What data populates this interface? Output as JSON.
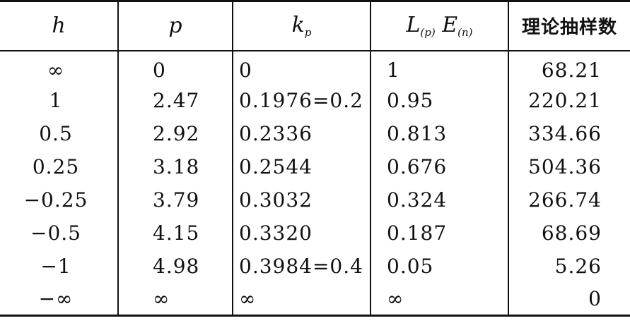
{
  "table": {
    "headers": {
      "h": "h",
      "p": "p",
      "kp": "k",
      "kp_sub": "p",
      "lp_main": "L",
      "lp_sub1": "(p)",
      "lp_main2": "E",
      "lp_sub2": "(n)",
      "sample": "理论抽样数"
    },
    "rows": [
      {
        "h": "∞",
        "p": "0",
        "kp": "0",
        "lp": "1",
        "n": "68.21"
      },
      {
        "h": "1",
        "p": "2.47",
        "kp": "0.1976=0.2",
        "lp": "0.95",
        "n": "220.21"
      },
      {
        "h": "0.5",
        "p": "2.92",
        "kp": "0.2336",
        "lp": "0.813",
        "n": "334.66"
      },
      {
        "h": "0.25",
        "p": "3.18",
        "kp": "0.2544",
        "lp": "0.676",
        "n": "504.36"
      },
      {
        "h": "−0.25",
        "p": "3.79",
        "kp": "0.3032",
        "lp": "0.324",
        "n": "266.74"
      },
      {
        "h": "−0.5",
        "p": "4.15",
        "kp": "0.3320",
        "lp": "0.187",
        "n": "68.69"
      },
      {
        "h": "−1",
        "p": "4.98",
        "kp": "0.3984=0.4",
        "lp": "0.05",
        "n": "5.26"
      },
      {
        "h": "−∞",
        "p": "∞",
        "kp": "∞",
        "lp": "∞",
        "n": "0"
      }
    ]
  }
}
